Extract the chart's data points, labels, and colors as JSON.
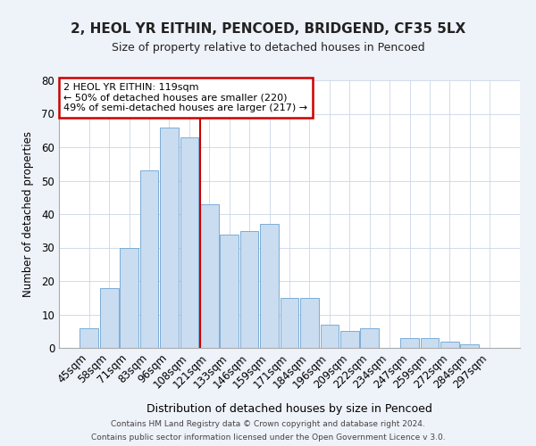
{
  "title": "2, HEOL YR EITHIN, PENCOED, BRIDGEND, CF35 5LX",
  "subtitle": "Size of property relative to detached houses in Pencoed",
  "xlabel": "Distribution of detached houses by size in Pencoed",
  "ylabel": "Number of detached properties",
  "bar_labels": [
    "45sqm",
    "58sqm",
    "71sqm",
    "83sqm",
    "96sqm",
    "108sqm",
    "121sqm",
    "133sqm",
    "146sqm",
    "159sqm",
    "171sqm",
    "184sqm",
    "196sqm",
    "209sqm",
    "222sqm",
    "234sqm",
    "247sqm",
    "259sqm",
    "272sqm",
    "284sqm",
    "297sqm"
  ],
  "bar_values": [
    6,
    18,
    30,
    53,
    66,
    63,
    43,
    34,
    35,
    37,
    15,
    15,
    7,
    5,
    6,
    0,
    3,
    3,
    2,
    1,
    0
  ],
  "bar_color": "#c9dcf0",
  "bar_edge_color": "#7badd6",
  "highlight_line_index": 6,
  "highlight_line_color": "#cc0000",
  "annotation_title": "2 HEOL YR EITHIN: 119sqm",
  "annotation_line1": "← 50% of detached houses are smaller (220)",
  "annotation_line2": "49% of semi-detached houses are larger (217) →",
  "annotation_box_color": "#ffffff",
  "annotation_box_edge": "#cc0000",
  "ylim": [
    0,
    80
  ],
  "yticks": [
    0,
    10,
    20,
    30,
    40,
    50,
    60,
    70,
    80
  ],
  "footer1": "Contains HM Land Registry data © Crown copyright and database right 2024.",
  "footer2": "Contains public sector information licensed under the Open Government Licence v 3.0.",
  "bg_color": "#eef2f9",
  "plot_bg_color": "#ffffff",
  "grid_color": "#ccd6e8"
}
